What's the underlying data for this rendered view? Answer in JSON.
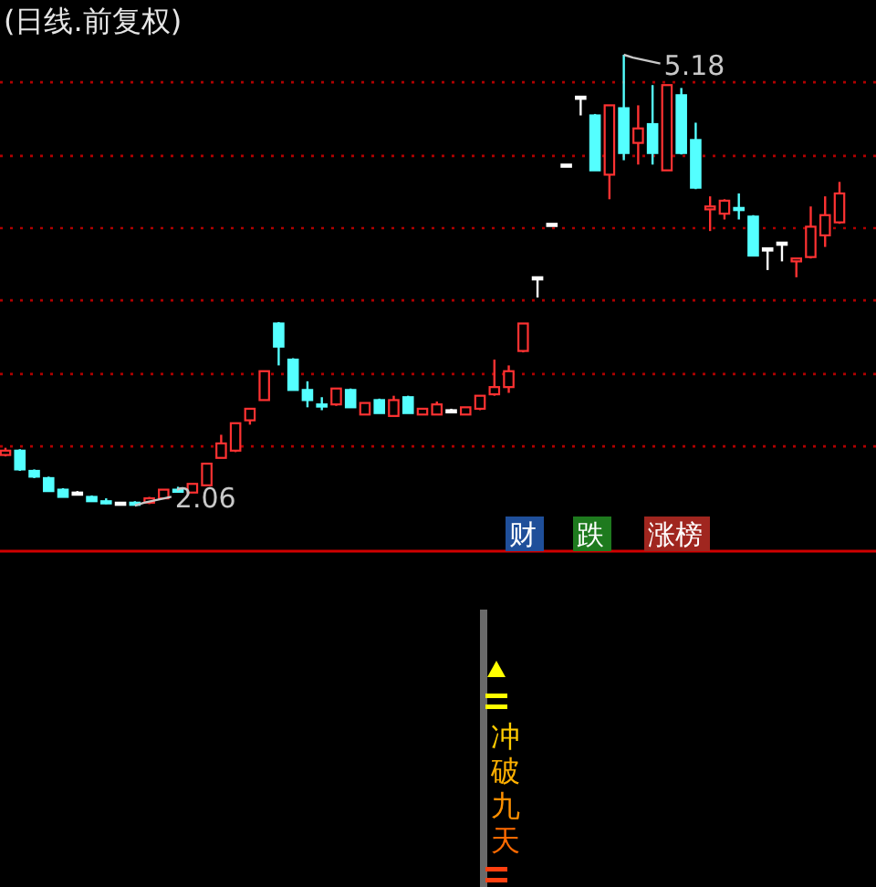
{
  "chart_data": [
    {
      "type": "candlestick",
      "title": "(日线.前复权)",
      "categories": [
        null,
        null,
        null,
        null,
        null,
        null,
        null,
        null,
        null,
        null,
        null,
        null,
        null,
        null,
        null,
        null,
        null,
        null,
        null,
        null,
        null,
        null,
        null,
        null,
        null,
        null,
        null,
        null,
        null,
        null,
        null,
        null,
        null,
        null,
        null,
        null,
        null,
        null,
        null,
        null,
        null,
        null,
        null,
        null,
        null,
        null,
        null,
        null,
        null,
        null,
        null,
        null,
        null,
        null,
        null,
        null,
        null,
        null,
        null
      ],
      "ohlc": [
        [
          2.41,
          2.46,
          2.4,
          2.44
        ],
        [
          2.44,
          2.45,
          2.3,
          2.31
        ],
        [
          2.3,
          2.31,
          2.25,
          2.26
        ],
        [
          2.25,
          2.26,
          2.16,
          2.16
        ],
        [
          2.17,
          2.18,
          2.12,
          2.12
        ],
        [
          2.15,
          2.16,
          2.14,
          2.15
        ],
        [
          2.12,
          2.13,
          2.09,
          2.09
        ],
        [
          2.09,
          2.11,
          2.07,
          2.09
        ],
        [
          2.08,
          2.08,
          2.07,
          2.08
        ],
        [
          2.08,
          2.09,
          2.06,
          2.07
        ],
        [
          2.08,
          2.12,
          2.07,
          2.11
        ],
        [
          2.11,
          2.17,
          2.11,
          2.17
        ],
        [
          2.17,
          2.19,
          2.15,
          2.17
        ],
        [
          2.15,
          2.21,
          2.15,
          2.21
        ],
        [
          2.2,
          2.35,
          2.2,
          2.35
        ],
        [
          2.39,
          2.55,
          2.39,
          2.49
        ],
        [
          2.44,
          2.63,
          2.43,
          2.63
        ],
        [
          2.65,
          2.73,
          2.62,
          2.73
        ],
        [
          2.79,
          2.99,
          2.79,
          2.99
        ],
        [
          3.32,
          3.33,
          3.03,
          3.16
        ],
        [
          3.07,
          3.08,
          2.86,
          2.86
        ],
        [
          2.86,
          2.92,
          2.74,
          2.79
        ],
        [
          2.76,
          2.81,
          2.72,
          2.75
        ],
        [
          2.76,
          2.87,
          2.75,
          2.87
        ],
        [
          2.86,
          2.87,
          2.74,
          2.74
        ],
        [
          2.69,
          2.77,
          2.69,
          2.77
        ],
        [
          2.79,
          2.8,
          2.7,
          2.7
        ],
        [
          2.68,
          2.82,
          2.68,
          2.79
        ],
        [
          2.81,
          2.82,
          2.7,
          2.7
        ],
        [
          2.69,
          2.73,
          2.69,
          2.73
        ],
        [
          2.69,
          2.78,
          2.69,
          2.76
        ],
        [
          2.72,
          2.73,
          2.72,
          2.72
        ],
        [
          2.69,
          2.74,
          2.69,
          2.74
        ],
        [
          2.73,
          2.82,
          2.72,
          2.82
        ],
        [
          2.83,
          3.07,
          2.82,
          2.88
        ],
        [
          2.88,
          3.03,
          2.84,
          2.99
        ],
        [
          3.13,
          3.32,
          3.12,
          3.32
        ],
        [
          3.64,
          3.64,
          3.5,
          3.64
        ],
        [
          4.01,
          4.01,
          4.01,
          4.01
        ],
        [
          4.42,
          4.42,
          4.42,
          4.42
        ],
        [
          4.89,
          4.89,
          4.76,
          4.89
        ],
        [
          4.76,
          4.77,
          4.38,
          4.38
        ],
        [
          4.35,
          4.83,
          4.18,
          4.83
        ],
        [
          4.81,
          5.18,
          4.45,
          4.5
        ],
        [
          4.57,
          4.83,
          4.42,
          4.67
        ],
        [
          4.7,
          4.97,
          4.42,
          4.5
        ],
        [
          4.38,
          4.97,
          4.38,
          4.97
        ],
        [
          4.9,
          4.95,
          4.49,
          4.5
        ],
        [
          4.59,
          4.71,
          4.25,
          4.26
        ],
        [
          4.11,
          4.2,
          3.96,
          4.13
        ],
        [
          4.08,
          4.18,
          4.04,
          4.17
        ],
        [
          4.12,
          4.22,
          4.04,
          4.11
        ],
        [
          4.06,
          4.07,
          3.79,
          3.79
        ],
        [
          3.84,
          3.84,
          3.69,
          3.84
        ],
        [
          3.88,
          3.88,
          3.75,
          3.88
        ],
        [
          3.75,
          3.77,
          3.64,
          3.77
        ],
        [
          3.78,
          4.13,
          3.77,
          3.99
        ],
        [
          3.93,
          4.2,
          3.85,
          4.07
        ],
        [
          4.02,
          4.3,
          4.01,
          4.22
        ]
      ],
      "colors": [
        "#ff3232",
        "#54ffff",
        "#54ffff",
        "#54ffff",
        "#54ffff",
        "#ffffff",
        "#54ffff",
        "#54ffff",
        "#ffffff",
        "#54ffff",
        "#ff3232",
        "#ff3232",
        "#54ffff",
        "#ff3232",
        "#ff3232",
        "#ff3232",
        "#ff3232",
        "#ff3232",
        "#ff3232",
        "#54ffff",
        "#54ffff",
        "#54ffff",
        "#54ffff",
        "#ff3232",
        "#54ffff",
        "#ff3232",
        "#54ffff",
        "#ff3232",
        "#54ffff",
        "#ff3232",
        "#ff3232",
        "#ffffff",
        "#ff3232",
        "#ff3232",
        "#ff3232",
        "#ff3232",
        "#ff3232",
        "#ffffff",
        "#ffffff",
        "#ffffff",
        "#ffffff",
        "#54ffff",
        "#ff3232",
        "#54ffff",
        "#ff3232",
        "#54ffff",
        "#ff3232",
        "#54ffff",
        "#54ffff",
        "#ff3232",
        "#ff3232",
        "#54ffff",
        "#54ffff",
        "#ffffff",
        "#ffffff",
        "#ff3232",
        "#ff3232",
        "#ff3232",
        "#ff3232"
      ],
      "yticks": [
        {
          "value": 4.99,
          "label": null
        },
        {
          "value": 4.48,
          "label": null
        },
        {
          "value": 3.98,
          "label": null
        },
        {
          "value": 3.48,
          "label": null
        },
        {
          "value": 2.97,
          "label": null
        },
        {
          "value": 2.47,
          "label": null
        }
      ],
      "grid": "y",
      "annotations": [
        "5.18",
        "2.06",
        "财",
        "跌",
        "涨榜"
      ]
    },
    {
      "type": "other",
      "annotations": [
        "冲破九天"
      ]
    }
  ]
}
